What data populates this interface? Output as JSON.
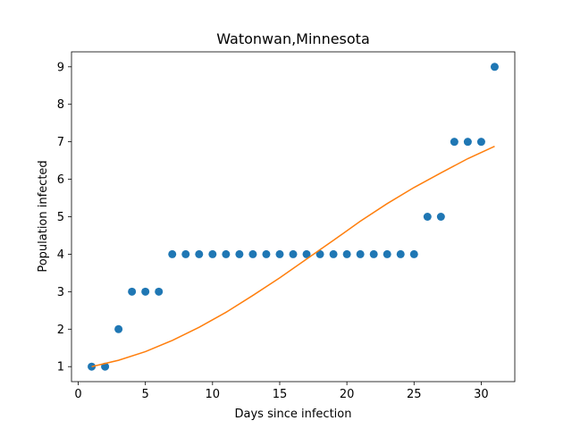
{
  "chart_data": {
    "type": "scatter",
    "title": "Watonwan,Minnesota",
    "xlabel": "Days since infection",
    "ylabel": "Population infected",
    "xlim": [
      -0.5,
      32.5
    ],
    "ylim": [
      0.6,
      9.4
    ],
    "xticks": [
      0,
      5,
      10,
      15,
      20,
      25,
      30
    ],
    "yticks": [
      1,
      2,
      3,
      4,
      5,
      6,
      7,
      8,
      9
    ],
    "grid": false,
    "series": [
      {
        "kind": "scatter",
        "color": "#1f77b4",
        "x": [
          1,
          2,
          3,
          4,
          5,
          6,
          7,
          8,
          9,
          10,
          11,
          12,
          13,
          14,
          15,
          16,
          17,
          18,
          19,
          20,
          21,
          22,
          23,
          24,
          25,
          26,
          27,
          28,
          29,
          30,
          31
        ],
        "y": [
          1,
          1,
          2,
          3,
          3,
          3,
          4,
          4,
          4,
          4,
          4,
          4,
          4,
          4,
          4,
          4,
          4,
          4,
          4,
          4,
          4,
          4,
          4,
          4,
          4,
          5,
          5,
          7,
          7,
          7,
          9
        ]
      },
      {
        "kind": "line",
        "color": "#ff7f0e",
        "x": [
          1,
          3,
          5,
          7,
          9,
          11,
          13,
          15,
          17,
          19,
          21,
          23,
          25,
          27,
          29,
          31
        ],
        "y": [
          1.0,
          1.17,
          1.4,
          1.7,
          2.05,
          2.45,
          2.9,
          3.37,
          3.87,
          4.37,
          4.88,
          5.35,
          5.78,
          6.17,
          6.55,
          6.88
        ]
      }
    ]
  }
}
